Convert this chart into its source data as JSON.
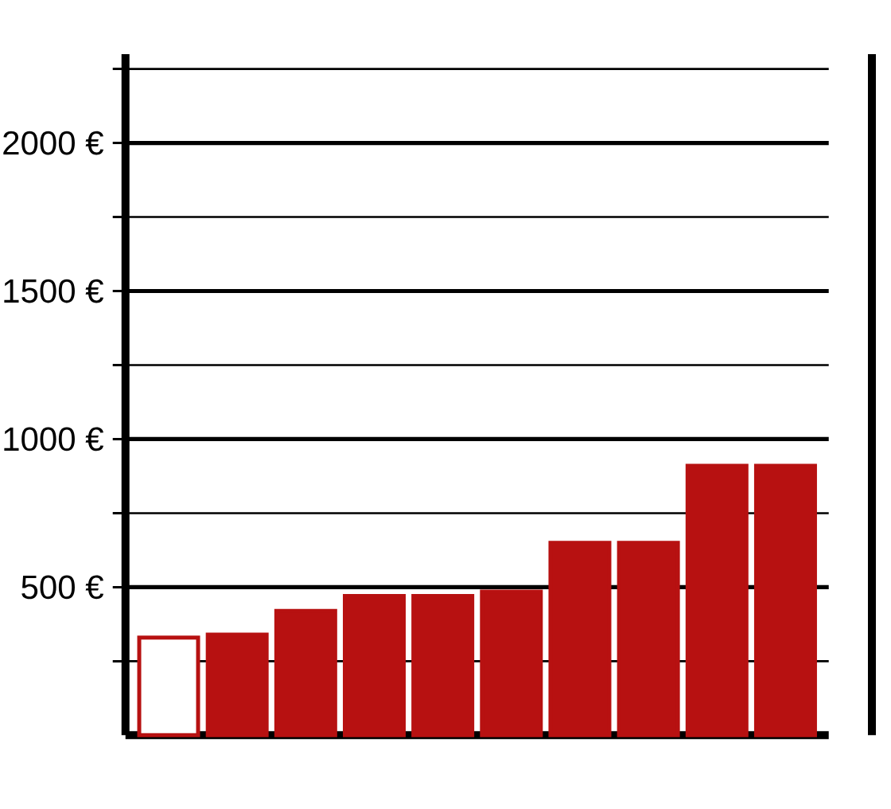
{
  "chart_data": {
    "type": "bar",
    "categories": [
      null,
      null,
      null,
      null,
      null,
      null,
      null,
      null,
      null,
      null
    ],
    "values": [
      330,
      340,
      420,
      470,
      470,
      485,
      650,
      650,
      910,
      910
    ],
    "color": "#b71111",
    "colors": [
      "#ffffff",
      "#b71111",
      "#b71111",
      "#b71111",
      "#b71111",
      "#b71111",
      "#b71111",
      "#b71111",
      "#b71111",
      "#b71111"
    ],
    "ylim": [
      0,
      2300
    ],
    "yticks": [
      {
        "value": 250,
        "label": null
      },
      {
        "value": 500,
        "label": "500 €"
      },
      {
        "value": 750,
        "label": null
      },
      {
        "value": 1000,
        "label": "1000 €"
      },
      {
        "value": 1250,
        "label": null
      },
      {
        "value": 1500,
        "label": "1500 €"
      },
      {
        "value": 1750,
        "label": null
      },
      {
        "value": 2000,
        "label": "2000 €"
      },
      {
        "value": 2250,
        "label": null
      }
    ],
    "grid": "y"
  }
}
